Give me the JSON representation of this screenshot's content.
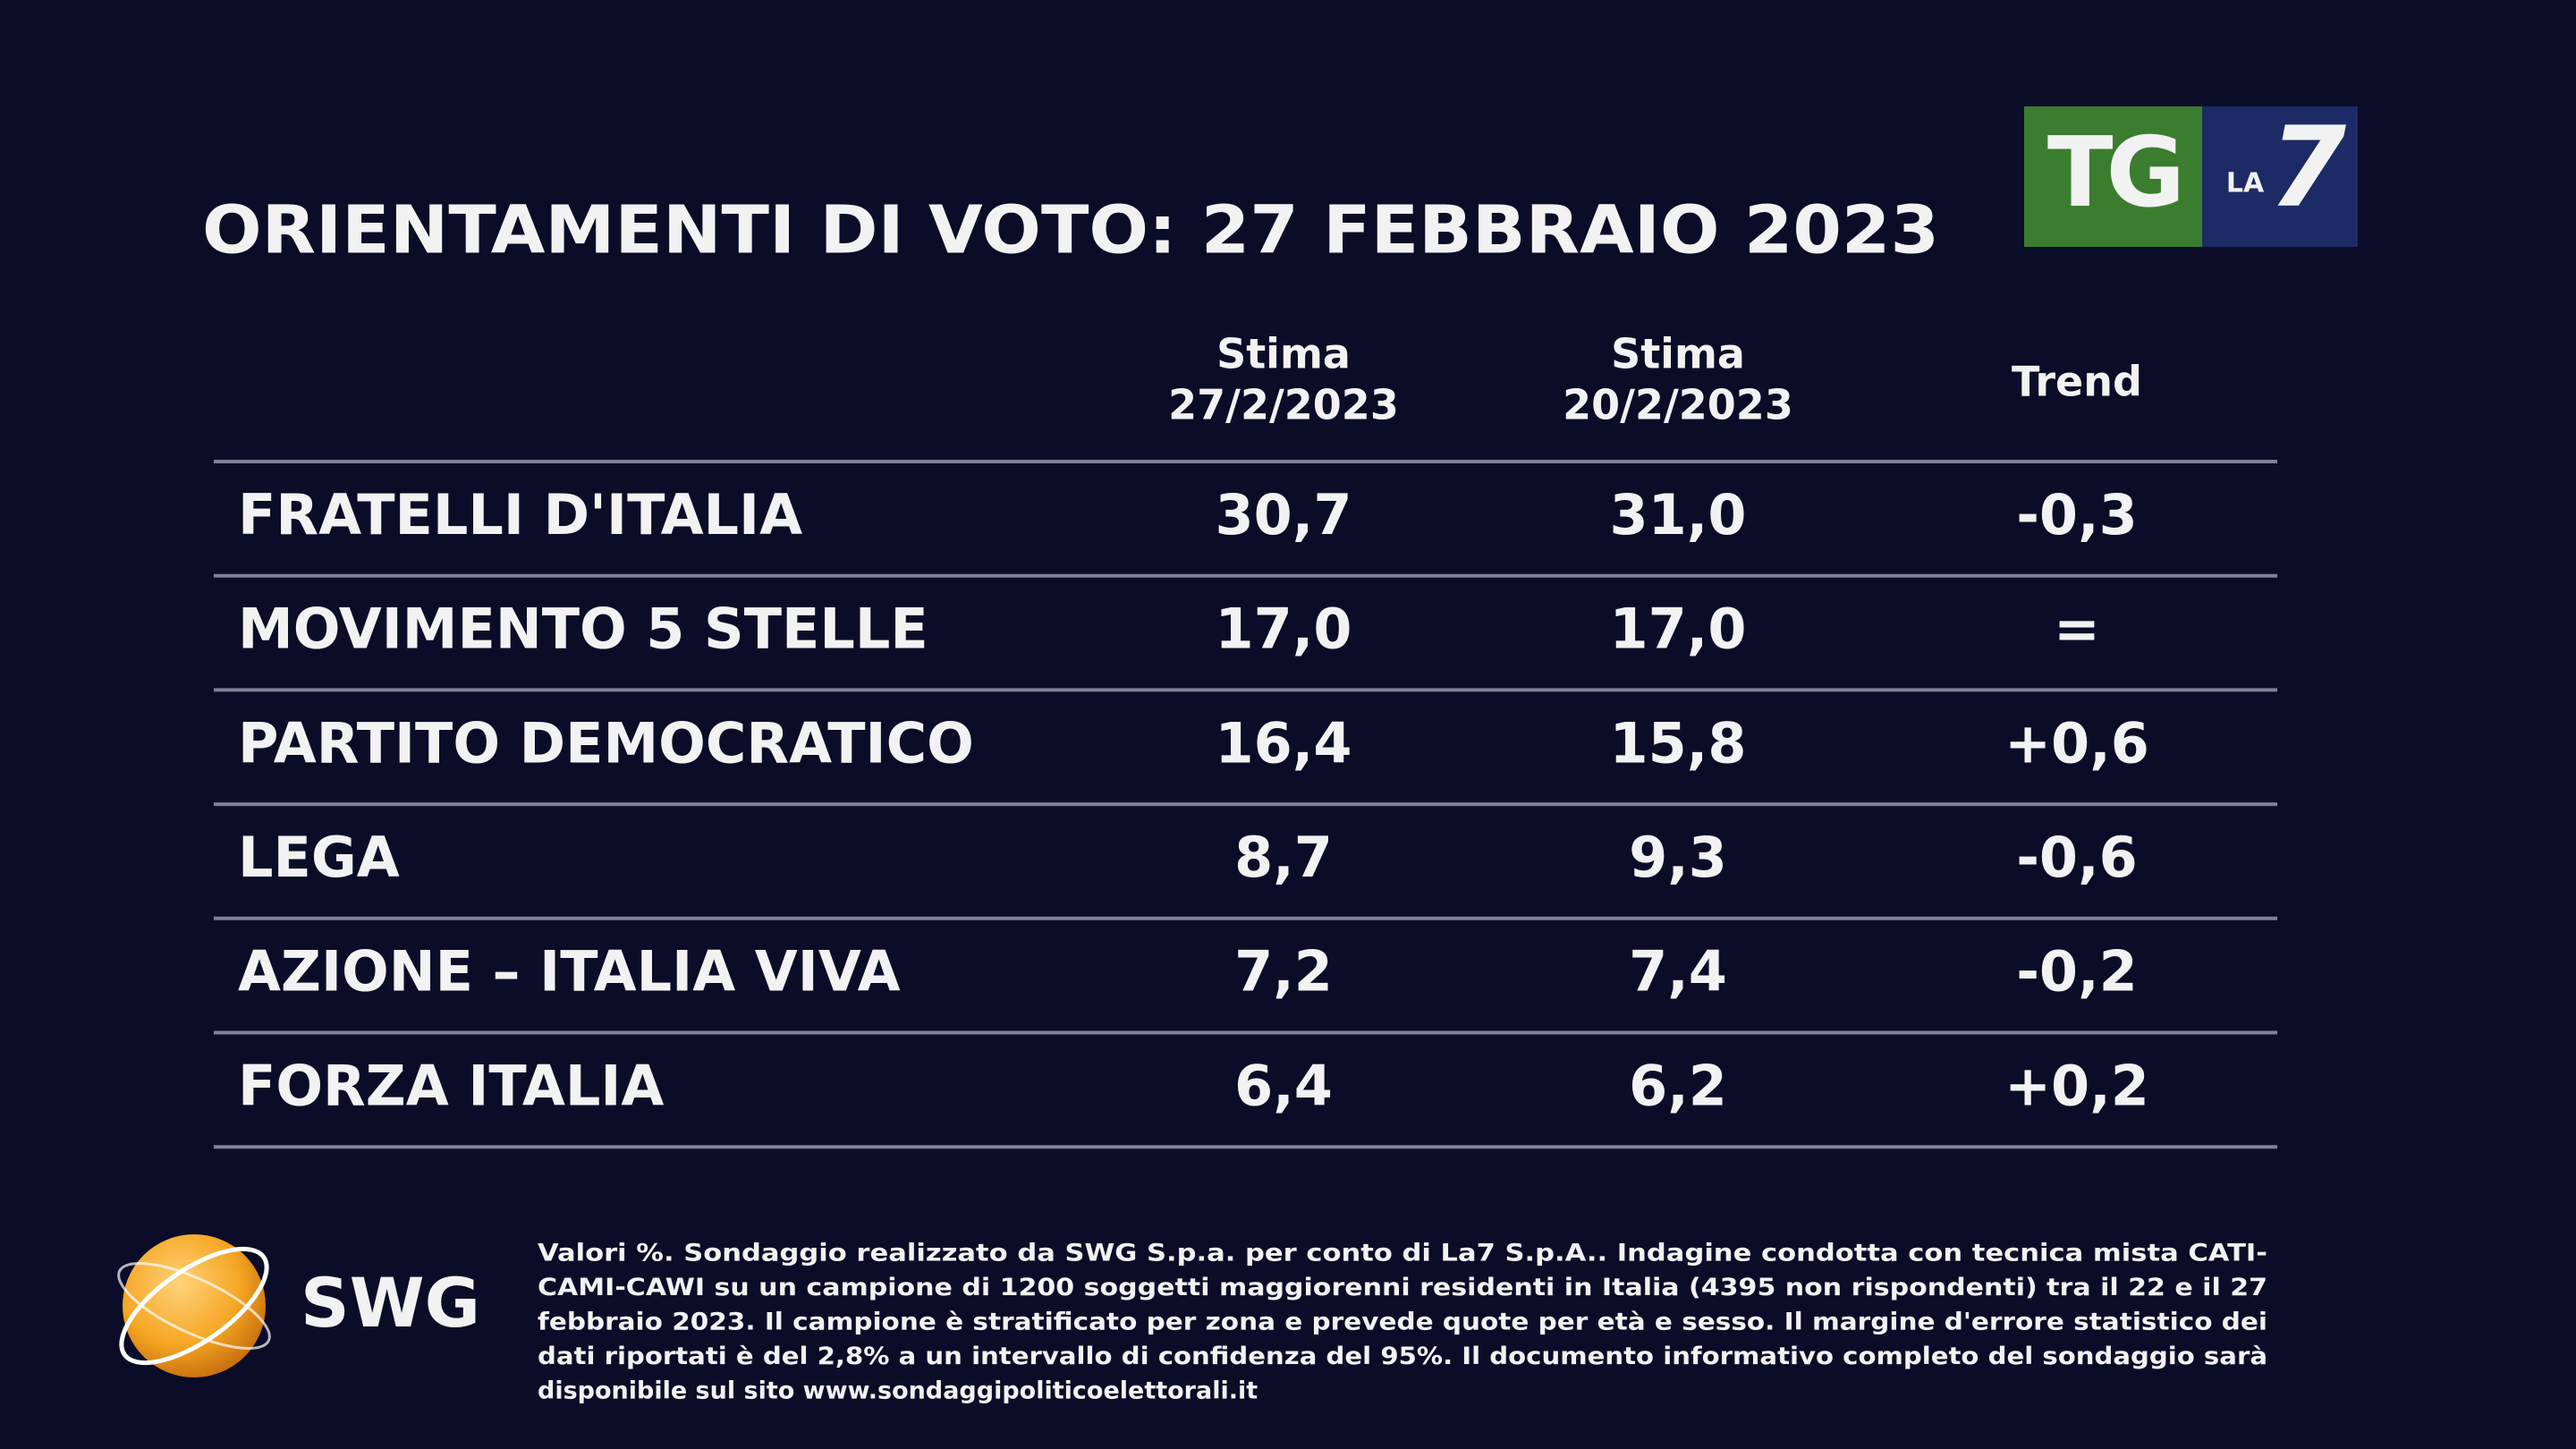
{
  "header": {
    "title": "ORIENTAMENTI DI VOTO: 27 FEBBRAIO 2023",
    "logo": {
      "tg": "TG",
      "la": "LA",
      "seven": "7"
    }
  },
  "table": {
    "columns": [
      {
        "title": "Stima",
        "date": "27/2/2023"
      },
      {
        "title": "Stima",
        "date": "20/2/2023"
      },
      {
        "title": "Trend"
      }
    ],
    "rows": [
      [
        "FRATELLI D'ITALIA",
        "30,7",
        "31,0",
        "-0,3"
      ],
      [
        "MOVIMENTO 5 STELLE",
        "17,0",
        "17,0",
        "="
      ],
      [
        "PARTITO DEMOCRATICO",
        "16,4",
        "15,8",
        "+0,6"
      ],
      [
        "LEGA",
        "8,7",
        "9,3",
        "-0,6"
      ],
      [
        "AZIONE – ITALIA VIVA",
        "7,2",
        "7,4",
        "-0,2"
      ],
      [
        "FORZA ITALIA",
        "6,4",
        "6,2",
        "+0,2"
      ]
    ]
  },
  "footer": {
    "brand": "SWG",
    "lines": [
      "Valori %. Sondaggio realizzato da SWG S.p.a. per conto di La7 S.p.A.. Indagine condotta con tecnica mista CATI-",
      "CAMI-CAWI su un campione di 1200 soggetti maggiorenni residenti in Italia (4395 non rispondenti) tra il 22 e il 27",
      "febbraio 2023. Il campione è stratificato per zona e prevede quote per età e sesso. Il margine d'errore statistico dei",
      "dati riportati è del 2,8% a un intervallo di confidenza del 95%. Il documento informativo completo del sondaggio sarà",
      "disponibile sul sito www.sondaggipoliticoelettorali.it"
    ]
  }
}
